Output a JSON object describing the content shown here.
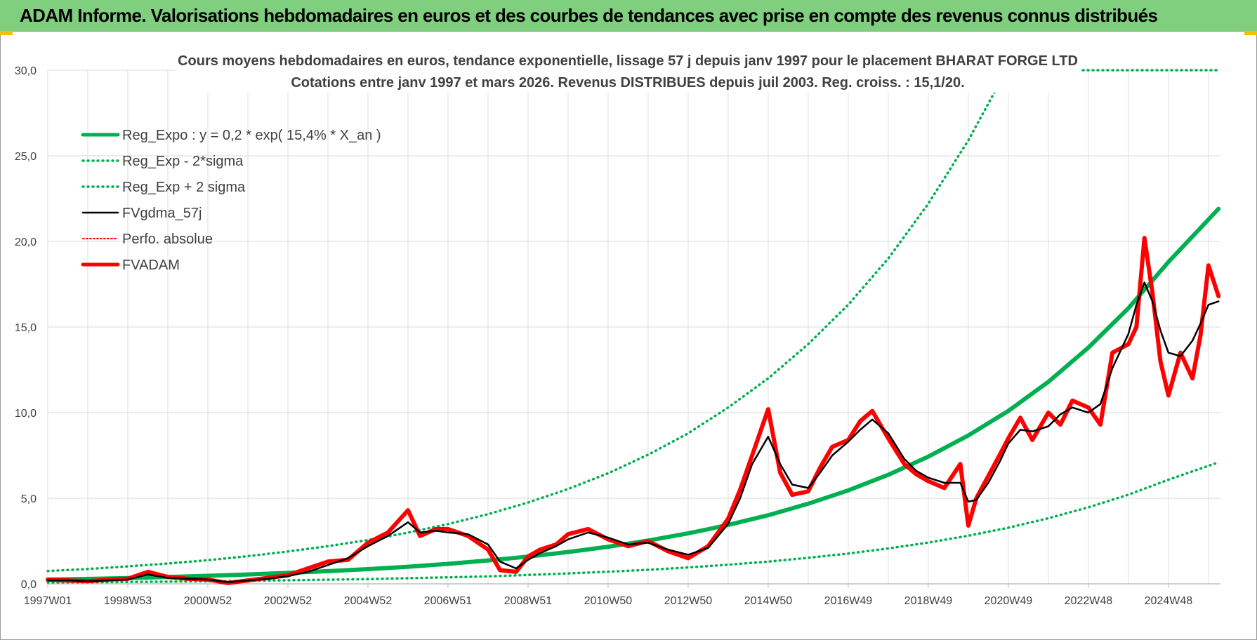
{
  "banner": {
    "title": "ADAM Informe. Valorisations hebdomadaires en euros et des courbes de tendances avec prise en compte des revenus connus distribués"
  },
  "colors": {
    "banner_bg": "#7fcf7f",
    "reg_expo": "#00b050",
    "fvgdma": "#000000",
    "perfo": "#ff0000",
    "fvadam": "#ff0000",
    "grid": "#d9d9d9"
  },
  "chart_data": {
    "type": "line",
    "title_line1": "Cours moyens hebdomadaires en euros, tendance exponentielle, lissage 57 j depuis janv 1997 pour le placement BHARAT FORGE LTD",
    "title_line2": "Cotations entre janv 1997 et mars 2026. Revenus DISTRIBUES depuis juil 2003. Reg. croiss. : 15,1/20.",
    "xlabel": "",
    "ylabel": "",
    "x_range": [
      1997.0,
      2026.3
    ],
    "ylim": [
      0,
      30
    ],
    "grid": true,
    "legend_position": "top-left",
    "y_ticks": [
      "0,0",
      "5,0",
      "10,0",
      "15,0",
      "20,0",
      "25,0",
      "30,0"
    ],
    "x_ticks": [
      {
        "label": "1997W01",
        "x": 1997.0
      },
      {
        "label": "1998W53",
        "x": 1999.0
      },
      {
        "label": "2000W52",
        "x": 2001.0
      },
      {
        "label": "2002W52",
        "x": 2003.0
      },
      {
        "label": "2004W52",
        "x": 2005.0
      },
      {
        "label": "2006W51",
        "x": 2007.0
      },
      {
        "label": "2008W51",
        "x": 2009.0
      },
      {
        "label": "2010W50",
        "x": 2011.0
      },
      {
        "label": "2012W50",
        "x": 2013.0
      },
      {
        "label": "2014W50",
        "x": 2015.0
      },
      {
        "label": "2016W49",
        "x": 2017.0
      },
      {
        "label": "2018W49",
        "x": 2019.0
      },
      {
        "label": "2020W49",
        "x": 2021.0
      },
      {
        "label": "2022W48",
        "x": 2023.0
      },
      {
        "label": "2024W48",
        "x": 2025.0
      }
    ],
    "series": [
      {
        "name": "Reg_Expo : y = 0,2 * exp( 15,4% *  X_an )",
        "style": "solid-thick",
        "color": "#00b050",
        "x": [
          1997,
          1998,
          1999,
          2000,
          2001,
          2002,
          2003,
          2004,
          2005,
          2006,
          2007,
          2008,
          2009,
          2010,
          2011,
          2012,
          2013,
          2014,
          2015,
          2016,
          2017,
          2018,
          2019,
          2020,
          2021,
          2022,
          2023,
          2024,
          2025,
          2026.25
        ],
        "y": [
          0.25,
          0.29,
          0.34,
          0.4,
          0.47,
          0.55,
          0.64,
          0.74,
          0.86,
          1.0,
          1.17,
          1.37,
          1.59,
          1.86,
          2.17,
          2.53,
          2.95,
          3.44,
          4.01,
          4.68,
          5.46,
          6.37,
          7.43,
          8.67,
          10.1,
          11.8,
          13.8,
          16.1,
          18.8,
          21.9
        ]
      },
      {
        "name": "Reg_Exp - 2*sigma",
        "style": "dotted",
        "color": "#00b050",
        "x": [
          1997,
          1998,
          1999,
          2000,
          2001,
          2002,
          2003,
          2004,
          2005,
          2006,
          2007,
          2008,
          2009,
          2010,
          2011,
          2012,
          2013,
          2014,
          2015,
          2016,
          2017,
          2018,
          2019,
          2020,
          2021,
          2022,
          2023,
          2024,
          2025,
          2026.25
        ],
        "y": [
          0.08,
          0.09,
          0.11,
          0.13,
          0.15,
          0.18,
          0.21,
          0.24,
          0.28,
          0.33,
          0.38,
          0.44,
          0.52,
          0.61,
          0.71,
          0.82,
          0.96,
          1.12,
          1.3,
          1.52,
          1.77,
          2.07,
          2.41,
          2.81,
          3.28,
          3.83,
          4.47,
          5.21,
          6.08,
          7.1
        ]
      },
      {
        "name": "Reg_Exp + 2 sigma",
        "style": "dotted",
        "color": "#00b050",
        "x": [
          1997,
          1998,
          1999,
          2000,
          2001,
          2002,
          2003,
          2004,
          2005,
          2006,
          2007,
          2008,
          2009,
          2010,
          2011,
          2012,
          2013,
          2014,
          2015,
          2016,
          2017,
          2018,
          2019,
          2020,
          2021
        ],
        "y": [
          0.75,
          0.87,
          1.02,
          1.19,
          1.38,
          1.62,
          1.89,
          2.2,
          2.56,
          2.99,
          3.49,
          4.07,
          4.75,
          5.54,
          6.46,
          7.54,
          8.79,
          10.3,
          12.0,
          14.0,
          16.3,
          19.0,
          22.2,
          25.9,
          30.2
        ]
      },
      {
        "name": "FVgdma_57j",
        "style": "solid",
        "color": "#000000",
        "x": [
          1997,
          1997.5,
          1998,
          1998.5,
          1999,
          1999.5,
          2000,
          2000.5,
          2001,
          2001.5,
          2002,
          2002.5,
          2003,
          2003.5,
          2004,
          2004.5,
          2005,
          2005.5,
          2006,
          2006.3,
          2006.7,
          2007,
          2007.5,
          2008,
          2008.3,
          2008.7,
          2009,
          2009.3,
          2009.7,
          2010,
          2010.5,
          2011,
          2011.5,
          2012,
          2012.5,
          2013,
          2013.5,
          2014,
          2014.3,
          2014.6,
          2015,
          2015.3,
          2015.6,
          2016,
          2016.3,
          2016.6,
          2017,
          2017.3,
          2017.6,
          2018,
          2018.4,
          2018.7,
          2019,
          2019.4,
          2019.8,
          2020,
          2020.2,
          2020.5,
          2020.8,
          2021,
          2021.3,
          2021.6,
          2022,
          2022.3,
          2022.6,
          2023,
          2023.3,
          2023.6,
          2024,
          2024.2,
          2024.4,
          2024.6,
          2024.8,
          2025,
          2025.3,
          2025.6,
          2025.8,
          2026,
          2026.25
        ],
        "y": [
          0.2,
          0.2,
          0.15,
          0.2,
          0.25,
          0.55,
          0.35,
          0.3,
          0.25,
          0.1,
          0.2,
          0.3,
          0.45,
          0.7,
          1.1,
          1.5,
          2.2,
          2.8,
          3.6,
          3.0,
          3.1,
          3.0,
          2.9,
          2.3,
          1.3,
          0.9,
          1.4,
          1.8,
          2.2,
          2.6,
          3.0,
          2.7,
          2.3,
          2.4,
          2.0,
          1.7,
          2.1,
          3.5,
          5.0,
          7.0,
          8.6,
          7.0,
          5.8,
          5.6,
          6.5,
          7.5,
          8.3,
          9.0,
          9.6,
          8.8,
          7.3,
          6.6,
          6.2,
          5.9,
          5.9,
          4.8,
          4.9,
          5.9,
          7.2,
          8.2,
          9.0,
          8.9,
          9.2,
          9.9,
          10.3,
          10.0,
          10.5,
          12.6,
          14.6,
          16.3,
          17.6,
          16.5,
          14.8,
          13.5,
          13.3,
          14.2,
          15.2,
          16.3,
          16.5
        ]
      },
      {
        "name": "Perfo. absolue",
        "style": "dotted",
        "color": "#ff0000",
        "x": [],
        "y": []
      },
      {
        "name": "FVADAM",
        "style": "solid-thick",
        "color": "#ff0000",
        "x": [
          1997,
          1997.5,
          1998,
          1998.5,
          1999,
          1999.5,
          2000,
          2000.5,
          2001,
          2001.5,
          2002,
          2002.5,
          2003,
          2003.5,
          2004,
          2004.5,
          2005,
          2005.5,
          2006,
          2006.3,
          2006.7,
          2007,
          2007.5,
          2008,
          2008.3,
          2008.7,
          2009,
          2009.3,
          2009.7,
          2010,
          2010.5,
          2011,
          2011.5,
          2012,
          2012.5,
          2013,
          2013.5,
          2014,
          2014.3,
          2014.6,
          2015,
          2015.3,
          2015.6,
          2016,
          2016.3,
          2016.6,
          2017,
          2017.3,
          2017.6,
          2018,
          2018.4,
          2018.7,
          2019,
          2019.4,
          2019.8,
          2020,
          2020.2,
          2020.5,
          2020.8,
          2021,
          2021.3,
          2021.6,
          2022,
          2022.3,
          2022.6,
          2023,
          2023.3,
          2023.6,
          2024,
          2024.2,
          2024.4,
          2024.6,
          2024.8,
          2025,
          2025.3,
          2025.6,
          2025.8,
          2026,
          2026.25
        ],
        "y": [
          0.25,
          0.2,
          0.15,
          0.25,
          0.3,
          0.7,
          0.4,
          0.3,
          0.25,
          0.05,
          0.2,
          0.35,
          0.5,
          0.9,
          1.3,
          1.4,
          2.4,
          3.0,
          4.3,
          2.8,
          3.2,
          3.2,
          2.8,
          2.0,
          0.8,
          0.7,
          1.6,
          2.0,
          2.3,
          2.9,
          3.2,
          2.6,
          2.2,
          2.5,
          1.9,
          1.5,
          2.2,
          3.8,
          5.5,
          7.5,
          10.2,
          6.5,
          5.2,
          5.4,
          6.8,
          8.0,
          8.4,
          9.5,
          10.1,
          8.5,
          7.0,
          6.4,
          6.0,
          5.6,
          7.0,
          3.4,
          5.0,
          6.3,
          7.6,
          8.5,
          9.7,
          8.4,
          10.0,
          9.3,
          10.7,
          10.3,
          9.3,
          13.5,
          14.0,
          15.0,
          20.2,
          17.0,
          13.0,
          11.0,
          13.5,
          12.0,
          14.5,
          18.6,
          16.8
        ]
      }
    ]
  }
}
